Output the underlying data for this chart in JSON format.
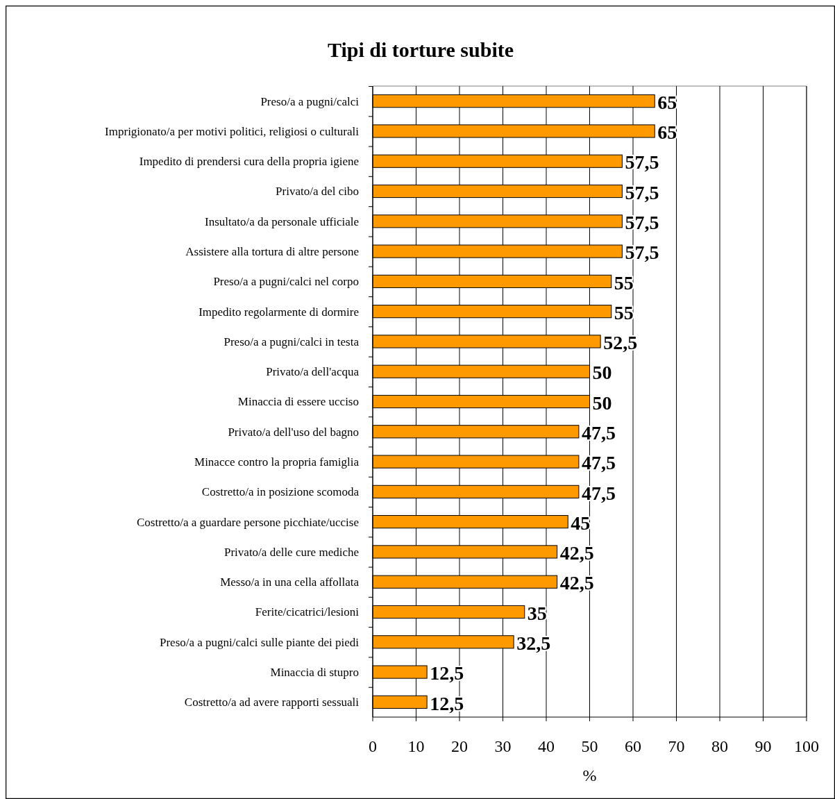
{
  "chart_data": {
    "type": "bar",
    "orientation": "horizontal",
    "title": "Tipi di torture subite",
    "xlabel": "%",
    "categories": [
      "Preso/a a pugni/calci",
      "Imprigionato/a per motivi politici, religiosi o culturali",
      "Impedito di prendersi cura della propria igiene",
      "Privato/a del cibo",
      "Insultato/a da personale ufficiale",
      "Assistere alla tortura di altre persone",
      "Preso/a a pugni/calci nel corpo",
      "Impedito regolarmente di dormire",
      "Preso/a a pugni/calci in testa",
      "Privato/a dell'acqua",
      "Minaccia di essere ucciso",
      "Privato/a dell'uso del bagno",
      "Minacce contro la propria famiglia",
      "Costretto/a in posizione scomoda",
      "Costretto/a a guardare persone picchiate/uccise",
      "Privato/a delle cure mediche",
      "Messo/a in una cella affollata",
      "Ferite/cicatrici/lesioni",
      "Preso/a a pugni/calci sulle piante dei piedi",
      "Minaccia di stupro",
      "Costretto/a ad avere rapporti sessuali"
    ],
    "values": [
      65,
      65,
      57.5,
      57.5,
      57.5,
      57.5,
      55,
      55,
      52.5,
      50,
      50,
      47.5,
      47.5,
      47.5,
      45,
      42.5,
      42.5,
      35,
      32.5,
      12.5,
      12.5
    ],
    "value_labels": [
      "65",
      "65",
      "57,5",
      "57,5",
      "57,5",
      "57,5",
      "55",
      "55",
      "52,5",
      "50",
      "50",
      "47,5",
      "47,5",
      "47,5",
      "45",
      "42,5",
      "42,5",
      "35",
      "32,5",
      "12,5",
      "12,5"
    ],
    "color": "#ff9900",
    "xlim": [
      0,
      100
    ],
    "xticks": [
      0,
      10,
      20,
      30,
      40,
      50,
      60,
      70,
      80,
      90,
      100
    ],
    "grid": "x"
  }
}
